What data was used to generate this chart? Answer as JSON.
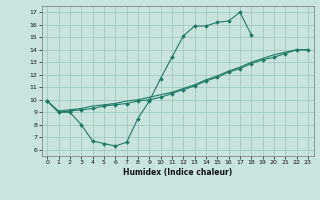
{
  "xlabel": "Humidex (Indice chaleur)",
  "bg_color": "#c9e3de",
  "grid_color": "#9dc4bc",
  "line_color": "#1e7a68",
  "xlim": [
    -0.5,
    23.5
  ],
  "ylim": [
    5.5,
    17.5
  ],
  "xticks": [
    0,
    1,
    2,
    3,
    4,
    5,
    6,
    7,
    8,
    9,
    10,
    11,
    12,
    13,
    14,
    15,
    16,
    17,
    18,
    19,
    20,
    21,
    22,
    23
  ],
  "yticks": [
    6,
    7,
    8,
    9,
    10,
    11,
    12,
    13,
    14,
    15,
    16,
    17
  ],
  "line1_x": [
    0,
    1,
    2,
    3,
    4,
    5,
    6,
    7,
    8,
    9,
    10,
    11,
    12,
    13,
    14,
    15,
    16,
    17,
    18
  ],
  "line1_y": [
    9.9,
    9.0,
    9.0,
    8.0,
    6.7,
    6.5,
    6.3,
    6.6,
    8.5,
    9.9,
    11.7,
    13.4,
    15.1,
    15.9,
    15.9,
    16.2,
    16.3,
    17.0,
    15.2
  ],
  "line2_x": [
    0,
    1,
    2,
    3,
    4,
    5,
    6,
    7,
    8,
    9,
    10,
    11,
    12,
    13,
    14,
    15,
    16,
    17,
    18,
    19,
    20,
    21,
    22,
    23
  ],
  "line2_y": [
    9.9,
    9.0,
    9.1,
    9.2,
    9.3,
    9.5,
    9.6,
    9.7,
    9.9,
    10.0,
    10.2,
    10.5,
    10.8,
    11.1,
    11.5,
    11.8,
    12.2,
    12.5,
    12.9,
    13.2,
    13.4,
    13.7,
    14.0,
    14.0
  ],
  "line3_x": [
    0,
    1,
    2,
    3,
    4,
    5,
    6,
    7,
    8,
    9,
    10,
    11,
    12,
    13,
    14,
    15,
    16,
    17,
    18,
    19,
    20,
    21,
    22,
    23
  ],
  "line3_y": [
    9.9,
    9.1,
    9.2,
    9.3,
    9.5,
    9.6,
    9.7,
    9.9,
    10.0,
    10.2,
    10.4,
    10.6,
    10.9,
    11.2,
    11.6,
    11.9,
    12.3,
    12.6,
    13.0,
    13.3,
    13.6,
    13.8,
    14.0,
    14.0
  ]
}
